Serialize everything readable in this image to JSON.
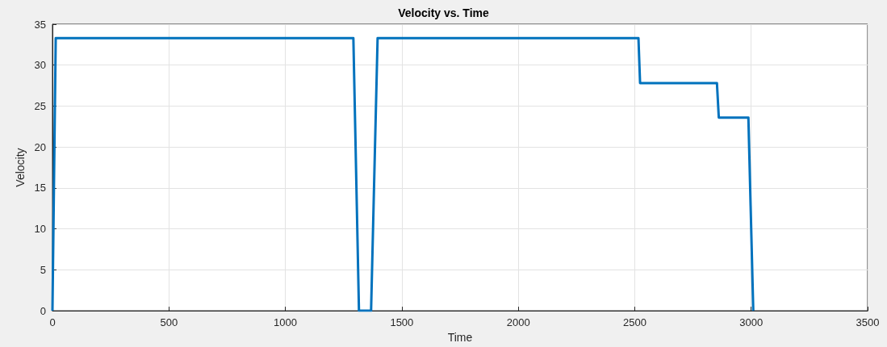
{
  "chart_data": {
    "type": "line",
    "title": "Velocity vs. Time",
    "xlabel": "Time",
    "ylabel": "Velocity",
    "series": [
      {
        "color": "#0072bd",
        "x": [
          0,
          14,
          1292,
          1316,
          1368,
          1396,
          2516,
          2523,
          2853,
          2861,
          2988,
          3009
        ],
        "values": [
          0,
          33.3,
          33.3,
          0,
          0,
          33.3,
          33.3,
          27.8,
          27.8,
          23.6,
          23.6,
          0
        ]
      }
    ],
    "xlim": [
      0,
      3500
    ],
    "xticks": [
      0,
      500,
      1000,
      1500,
      2000,
      2500,
      3000,
      3500
    ],
    "ylim": [
      0,
      35
    ],
    "yticks": [
      0,
      5,
      10,
      15,
      20,
      25,
      30,
      35
    ],
    "grid": true,
    "marker": "none",
    "line_style": "solid"
  }
}
